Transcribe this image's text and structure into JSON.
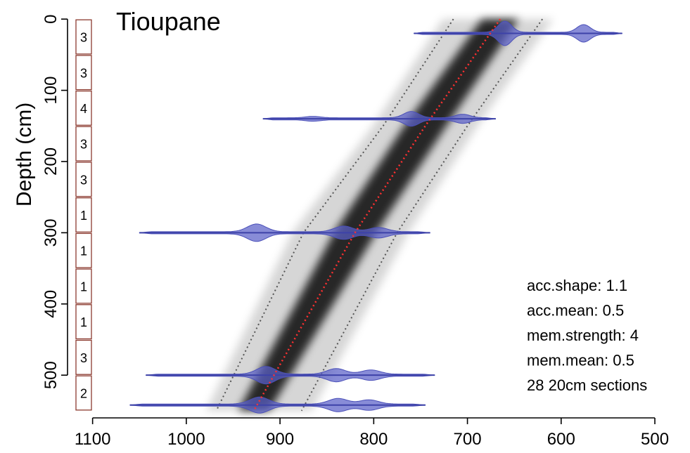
{
  "chart_data": {
    "type": "age-depth",
    "title": "Tioupane",
    "ylabel": "Depth (cm)",
    "xlabel": "",
    "x_reversed": true,
    "y_reversed": true,
    "xlim": [
      1120,
      470
    ],
    "ylim": [
      -15,
      560
    ],
    "x_ticks": [
      1100,
      1000,
      900,
      800,
      700,
      600,
      500
    ],
    "y_ticks": [
      0,
      100,
      200,
      300,
      400,
      500
    ],
    "accumulation_sections": [
      {
        "top": 0,
        "bottom": 50,
        "value": "3"
      },
      {
        "top": 50,
        "bottom": 100,
        "value": "3"
      },
      {
        "top": 100,
        "bottom": 150,
        "value": "4"
      },
      {
        "top": 150,
        "bottom": 200,
        "value": "3"
      },
      {
        "top": 200,
        "bottom": 250,
        "value": "3"
      },
      {
        "top": 250,
        "bottom": 300,
        "value": "1"
      },
      {
        "top": 300,
        "bottom": 350,
        "value": "1"
      },
      {
        "top": 350,
        "bottom": 400,
        "value": "1"
      },
      {
        "top": 400,
        "bottom": 450,
        "value": "1"
      },
      {
        "top": 450,
        "bottom": 500,
        "value": "3"
      },
      {
        "top": 500,
        "bottom": 550,
        "value": "2"
      }
    ],
    "median_model": {
      "x": [
        665,
        745,
        820,
        928
      ],
      "y": [
        0,
        150,
        300,
        550
      ]
    },
    "confidence_lower": [
      [
        715,
        0
      ],
      [
        790,
        150
      ],
      [
        875,
        300
      ],
      [
        968,
        550
      ]
    ],
    "confidence_upper": [
      [
        620,
        0
      ],
      [
        700,
        150
      ],
      [
        775,
        300
      ],
      [
        877,
        550
      ]
    ],
    "dates": [
      {
        "depth": 20,
        "min": 535,
        "max": 757,
        "peaks": [
          {
            "x": 660,
            "h": 16
          },
          {
            "x": 576,
            "h": 11
          }
        ]
      },
      {
        "depth": 140,
        "min": 670,
        "max": 918,
        "peaks": [
          {
            "x": 760,
            "h": 9
          },
          {
            "x": 705,
            "h": 5
          },
          {
            "x": 865,
            "h": 2
          }
        ]
      },
      {
        "depth": 300,
        "min": 740,
        "max": 1050,
        "peaks": [
          {
            "x": 925,
            "h": 11
          },
          {
            "x": 832,
            "h": 8
          },
          {
            "x": 795,
            "h": 6
          }
        ]
      },
      {
        "depth": 500,
        "min": 735,
        "max": 1043,
        "peaks": [
          {
            "x": 915,
            "h": 11
          },
          {
            "x": 840,
            "h": 8
          },
          {
            "x": 803,
            "h": 6
          }
        ]
      },
      {
        "depth": 542,
        "min": 745,
        "max": 1060,
        "peaks": [
          {
            "x": 922,
            "h": 10
          },
          {
            "x": 838,
            "h": 8
          },
          {
            "x": 805,
            "h": 6
          }
        ]
      }
    ],
    "params": [
      "acc.shape: 1.1",
      "acc.mean: 0.5",
      "mem.strength: 4",
      "mem.mean: 0.5",
      "28 20cm sections"
    ],
    "colors": {
      "dates": "#5a5fc8",
      "median": "#ff3030",
      "confidence": "#555555",
      "sections_border": "#8b3a2f",
      "axis": "#000000"
    }
  }
}
